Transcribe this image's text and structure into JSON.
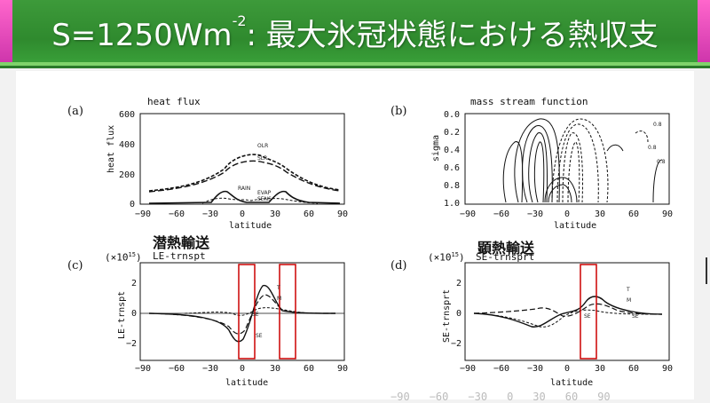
{
  "slide": {
    "title_main": "S=1250Wm",
    "title_sup": "-2",
    "title_rest": ": 最大氷冠状態における熱収支"
  },
  "panels": {
    "a": {
      "tag": "(a)",
      "title": "heat flux",
      "ylabel": "heat flux",
      "xlabel": "latitude",
      "curve_labels": [
        "OLR",
        "SLR",
        "RAIN",
        "EVAP",
        "SENS"
      ]
    },
    "b": {
      "tag": "(b)",
      "title": "mass stream function",
      "ylabel": "sigma",
      "xlabel": "latitude",
      "contour_labels": [
        "0.8",
        "0.8",
        "0.8"
      ]
    },
    "c": {
      "tag": "(c)",
      "title": "LE-trnspt",
      "ylabel": "LE-trnspt",
      "xlabel": "latitude",
      "annotation_jp": "潜熱輸送",
      "scale": "(×10",
      "scale_exp": "15",
      "scale_close": ")",
      "curve_labels": [
        "T",
        "M",
        "SE",
        "SE"
      ]
    },
    "d": {
      "tag": "(d)",
      "title": "SE-trnsprt",
      "ylabel": "SE-trnsprt",
      "xlabel": "latitude",
      "annotation_jp": "顕熱輸送",
      "scale": "(×10",
      "scale_exp": "15",
      "scale_close": ")",
      "curve_labels": [
        "T",
        "M",
        "SE",
        "SE"
      ]
    }
  },
  "axes": {
    "lat_ticks": [
      "−90",
      "−60",
      "−30",
      "0",
      "30",
      "60",
      "90"
    ],
    "heat_ticks": [
      "600",
      "400",
      "200",
      "0"
    ],
    "sigma_ticks": [
      "0.0",
      "0.2",
      "0.4",
      "0.6",
      "0.8",
      "1.0"
    ],
    "trans_ticks": [
      "2",
      "0",
      "−2"
    ]
  },
  "bottom_ticks": [
    "−90",
    "−60",
    "−30",
    "0",
    "30",
    "60",
    "90"
  ],
  "colors": {
    "banner": "#2f8a2e",
    "accent_pink": "#ff66cc",
    "highlight_box": "#cc0000"
  }
}
